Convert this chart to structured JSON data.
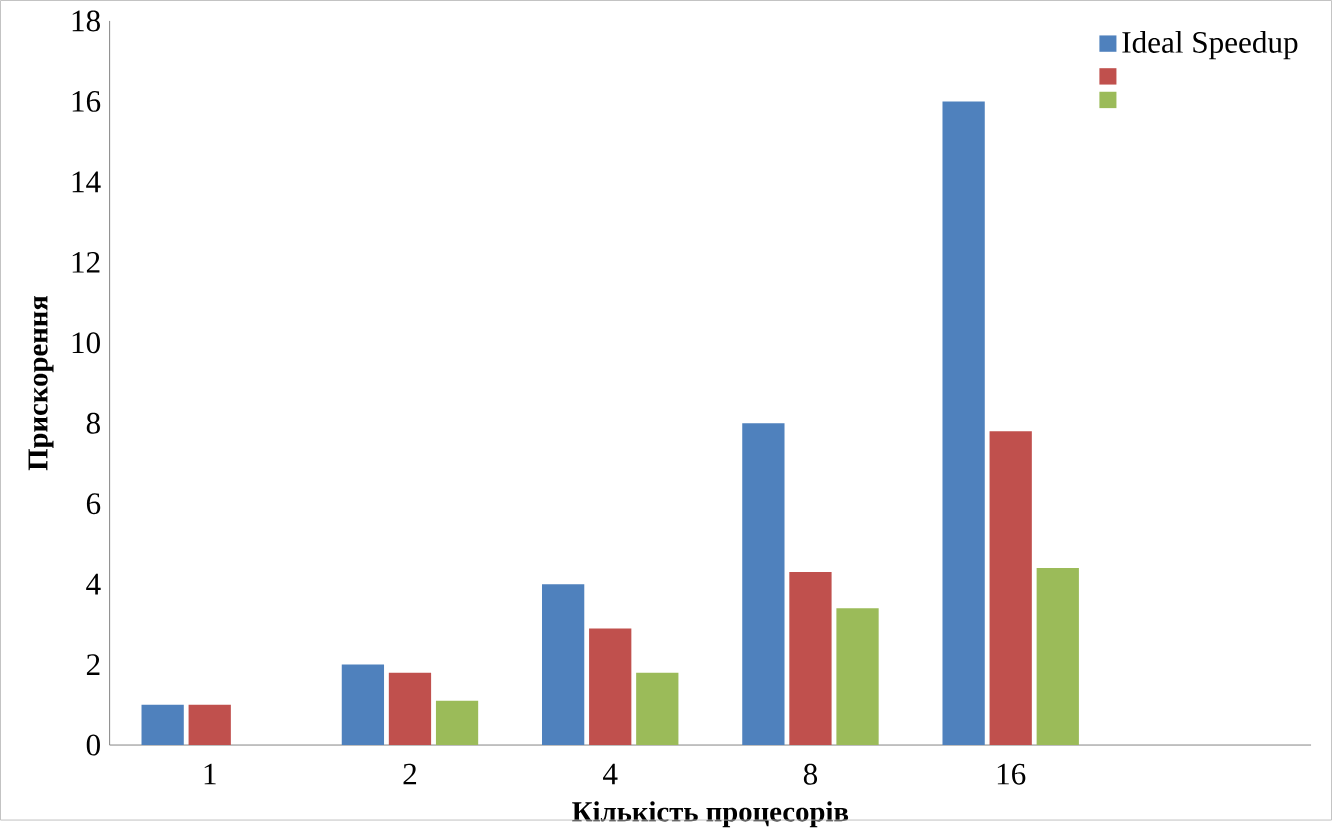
{
  "chart_data": {
    "type": "bar",
    "xlabel": "Кількість процесорів",
    "ylabel": "Прискорення",
    "categories": [
      "1",
      "2",
      "4",
      "8",
      "16",
      null
    ],
    "series": [
      {
        "name": "Ideal Speedup",
        "color": "#4f81bd",
        "values": [
          1,
          2,
          4,
          8,
          16,
          null
        ]
      },
      {
        "color": "#c0504d",
        "values": [
          1,
          1.8,
          2.9,
          4.3,
          7.8,
          null
        ]
      },
      {
        "color": "#9bbb59",
        "values": [
          null,
          1.1,
          1.8,
          3.4,
          4.4,
          null
        ]
      }
    ],
    "ylim": [
      0,
      18
    ],
    "yticks": [
      0,
      2,
      4,
      6,
      8,
      10,
      12,
      14,
      16,
      18
    ],
    "grid": false,
    "legend": "top right"
  }
}
